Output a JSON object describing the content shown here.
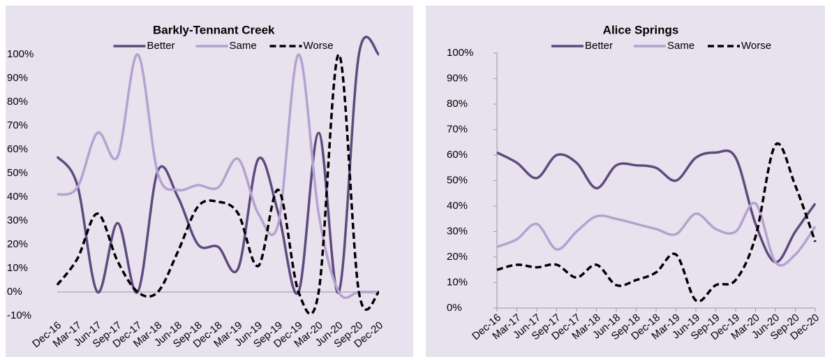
{
  "chart_data": [
    {
      "type": "line",
      "title": "Barkly-Tennant Creek",
      "categories": [
        "Dec-16",
        "Mar-17",
        "Jun-17",
        "Sep-17",
        "Dec-17",
        "Mar-18",
        "Jun-18",
        "Sep-18",
        "Dec-18",
        "Mar-19",
        "Jun-19",
        "Sep-19",
        "Dec-19",
        "Mar-20",
        "Jun-20",
        "Sep-20",
        "Dec-20"
      ],
      "series": [
        {
          "name": "Better",
          "color": "#5e4b7e",
          "values": [
            57,
            45,
            0,
            29,
            0,
            51,
            40,
            20,
            19,
            10,
            56,
            33,
            0,
            67,
            0,
            100,
            100
          ]
        },
        {
          "name": "Same",
          "color": "#b3a3cf",
          "values": [
            41,
            44,
            67,
            57,
            100,
            50,
            43,
            45,
            44,
            56,
            33,
            29,
            100,
            33,
            0,
            0,
            0
          ]
        },
        {
          "name": "Worse",
          "color": "#000000",
          "dashed": true,
          "values": [
            3,
            14,
            33,
            13,
            0,
            0,
            17,
            36,
            38,
            33,
            11,
            43,
            0,
            0,
            100,
            0,
            0
          ]
        }
      ],
      "ylim": [
        -10,
        100
      ],
      "yticks": [
        {
          "value": -10,
          "label": "-10%"
        },
        {
          "value": 0,
          "label": "0%"
        },
        {
          "value": 10,
          "label": "10%"
        },
        {
          "value": 20,
          "label": "20%"
        },
        {
          "value": 30,
          "label": "30%"
        },
        {
          "value": 40,
          "label": "40%"
        },
        {
          "value": 50,
          "label": "50%"
        },
        {
          "value": 60,
          "label": "60%"
        },
        {
          "value": 70,
          "label": "70%"
        },
        {
          "value": 80,
          "label": "80%"
        },
        {
          "value": 90,
          "label": "90%"
        },
        {
          "value": 100,
          "label": "100%"
        }
      ],
      "legend": "top"
    },
    {
      "type": "line",
      "title": "Alice Springs",
      "categories": [
        "Dec-16",
        "Mar-17",
        "Jun-17",
        "Sep-17",
        "Dec-17",
        "Mar-18",
        "Jun-18",
        "Sep-18",
        "Dec-18",
        "Mar-19",
        "Jun-19",
        "Sep-19",
        "Dec-19",
        "Mar-20",
        "Jun-20",
        "Sep-20",
        "Dec-20"
      ],
      "series": [
        {
          "name": "Better",
          "color": "#5e4b7e",
          "values": [
            61,
            57,
            51,
            60,
            57,
            47,
            56,
            56,
            55,
            50,
            59,
            61,
            59,
            33,
            18,
            30,
            41
          ]
        },
        {
          "name": "Same",
          "color": "#b3a3cf",
          "values": [
            24,
            27,
            33,
            23,
            30,
            36,
            35,
            33,
            31,
            29,
            37,
            31,
            30,
            41,
            18,
            21,
            32
          ]
        },
        {
          "name": "Worse",
          "color": "#000000",
          "dashed": true,
          "values": [
            15,
            17,
            16,
            17,
            12,
            17,
            9,
            11,
            14,
            21,
            3,
            9,
            11,
            28,
            64,
            48,
            26
          ]
        }
      ],
      "ylim": [
        0,
        100
      ],
      "yticks": [
        {
          "value": 0,
          "label": "0%"
        },
        {
          "value": 10,
          "label": "10%"
        },
        {
          "value": 20,
          "label": "20%"
        },
        {
          "value": 30,
          "label": "30%"
        },
        {
          "value": 40,
          "label": "40%"
        },
        {
          "value": 50,
          "label": "50%"
        },
        {
          "value": 60,
          "label": "60%"
        },
        {
          "value": 70,
          "label": "70%"
        },
        {
          "value": 80,
          "label": "80%"
        },
        {
          "value": 90,
          "label": "90%"
        },
        {
          "value": 100,
          "label": "100%"
        }
      ],
      "legend": "top"
    }
  ]
}
